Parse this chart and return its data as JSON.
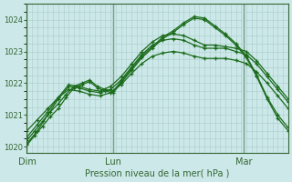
{
  "background_color": "#cce8e8",
  "grid_color": "#aacccc",
  "line_color": "#1a6b1a",
  "xlabel": "Pression niveau de la mer( hPa )",
  "ylim": [
    1019.8,
    1024.5
  ],
  "yticks": [
    1020,
    1021,
    1022,
    1023,
    1024
  ],
  "day_labels": [
    "Dim",
    "Lun",
    "Mar"
  ],
  "day_positions": [
    0,
    0.33,
    0.83
  ],
  "series": [
    {
      "x": [
        0.0,
        0.04,
        0.08,
        0.12,
        0.16,
        0.2,
        0.24,
        0.28,
        0.32,
        0.36,
        0.4,
        0.44,
        0.48,
        0.52,
        0.56,
        0.6,
        0.64,
        0.68,
        0.72,
        0.76,
        0.8,
        0.84,
        0.88,
        0.92,
        0.96,
        1.0
      ],
      "y": [
        1020.1,
        1020.5,
        1021.0,
        1021.5,
        1021.9,
        1021.85,
        1021.75,
        1021.7,
        1021.8,
        1022.1,
        1022.5,
        1022.9,
        1023.2,
        1023.35,
        1023.4,
        1023.35,
        1023.2,
        1023.1,
        1023.1,
        1023.1,
        1023.0,
        1022.9,
        1022.6,
        1022.2,
        1021.8,
        1021.4
      ]
    },
    {
      "x": [
        0.0,
        0.04,
        0.08,
        0.12,
        0.16,
        0.2,
        0.24,
        0.28,
        0.32,
        0.36,
        0.4,
        0.44,
        0.48,
        0.52,
        0.56,
        0.6,
        0.64,
        0.68,
        0.72,
        0.76,
        0.8,
        0.84,
        0.88,
        0.92,
        0.96,
        1.0
      ],
      "y": [
        1020.3,
        1020.7,
        1021.1,
        1021.55,
        1021.95,
        1021.9,
        1021.8,
        1021.75,
        1021.9,
        1022.2,
        1022.6,
        1023.0,
        1023.3,
        1023.5,
        1023.55,
        1023.5,
        1023.35,
        1023.2,
        1023.2,
        1023.15,
        1023.1,
        1023.0,
        1022.7,
        1022.3,
        1021.9,
        1021.5
      ]
    },
    {
      "x": [
        0.0,
        0.03,
        0.06,
        0.09,
        0.12,
        0.15,
        0.18,
        0.21,
        0.24,
        0.27,
        0.3,
        0.33,
        0.36,
        0.4,
        0.44,
        0.48,
        0.52,
        0.56,
        0.6,
        0.64,
        0.68,
        0.72,
        0.76,
        0.8,
        0.84,
        0.88,
        0.92,
        0.96,
        1.0
      ],
      "y": [
        1020.05,
        1020.35,
        1020.65,
        1020.95,
        1021.2,
        1021.55,
        1021.85,
        1021.95,
        1022.05,
        1021.85,
        1021.75,
        1021.7,
        1022.0,
        1022.4,
        1022.8,
        1023.1,
        1023.4,
        1023.6,
        1023.85,
        1024.05,
        1024.0,
        1023.75,
        1023.5,
        1023.2,
        1022.8,
        1022.2,
        1021.5,
        1020.9,
        1020.5
      ]
    },
    {
      "x": [
        0.0,
        0.03,
        0.06,
        0.09,
        0.12,
        0.15,
        0.18,
        0.21,
        0.24,
        0.27,
        0.3,
        0.33,
        0.36,
        0.4,
        0.44,
        0.48,
        0.52,
        0.56,
        0.6,
        0.64,
        0.68,
        0.72,
        0.76,
        0.8,
        0.84,
        0.88,
        0.92,
        0.96,
        1.0
      ],
      "y": [
        1020.2,
        1020.5,
        1020.8,
        1021.1,
        1021.35,
        1021.65,
        1021.9,
        1022.0,
        1022.1,
        1021.9,
        1021.8,
        1021.75,
        1022.05,
        1022.45,
        1022.85,
        1023.15,
        1023.45,
        1023.65,
        1023.9,
        1024.1,
        1024.05,
        1023.8,
        1023.55,
        1023.25,
        1022.85,
        1022.25,
        1021.55,
        1021.0,
        1020.6
      ]
    },
    {
      "x": [
        0.0,
        0.04,
        0.08,
        0.12,
        0.16,
        0.2,
        0.24,
        0.28,
        0.32,
        0.36,
        0.4,
        0.44,
        0.48,
        0.52,
        0.56,
        0.6,
        0.64,
        0.68,
        0.72,
        0.76,
        0.8,
        0.84,
        0.88,
        0.92,
        0.96,
        1.0
      ],
      "y": [
        1020.5,
        1020.85,
        1021.2,
        1021.55,
        1021.8,
        1021.75,
        1021.65,
        1021.6,
        1021.7,
        1021.95,
        1022.3,
        1022.62,
        1022.85,
        1022.95,
        1023.0,
        1022.95,
        1022.85,
        1022.78,
        1022.78,
        1022.78,
        1022.72,
        1022.62,
        1022.35,
        1022.0,
        1021.6,
        1021.2
      ]
    }
  ]
}
